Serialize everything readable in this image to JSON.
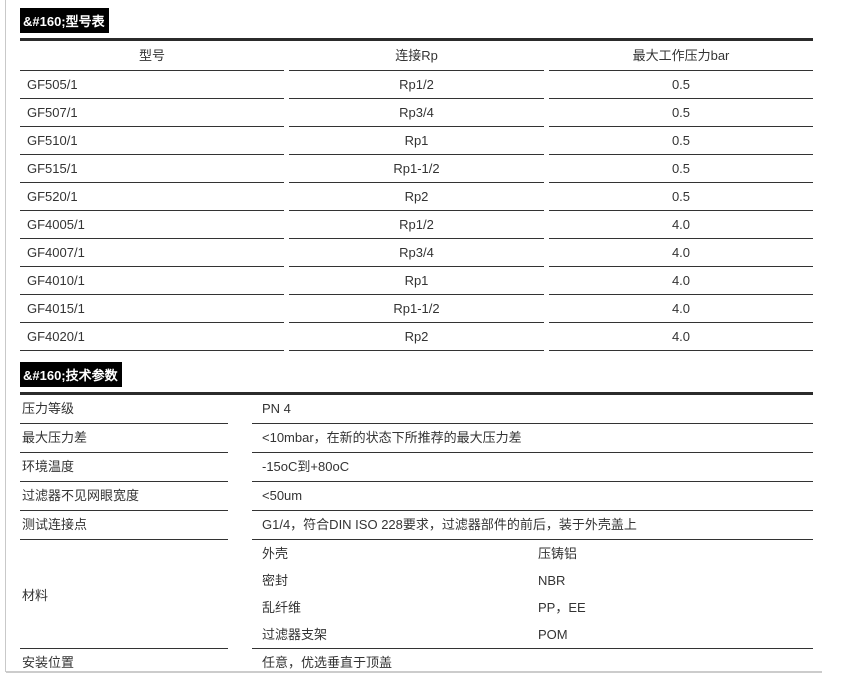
{
  "section1": {
    "title": "&#160;型号表",
    "table": {
      "headers": [
        "型号",
        "连接Rp",
        "最大工作压力bar"
      ],
      "rows": [
        [
          "GF505/1",
          "Rp1/2",
          "0.5"
        ],
        [
          "GF507/1",
          "Rp3/4",
          "0.5"
        ],
        [
          "GF510/1",
          "Rp1",
          "0.5"
        ],
        [
          "GF515/1",
          "Rp1-1/2",
          "0.5"
        ],
        [
          "GF520/1",
          "Rp2",
          "0.5"
        ],
        [
          "GF4005/1",
          "Rp1/2",
          "4.0"
        ],
        [
          "GF4007/1",
          "Rp3/4",
          "4.0"
        ],
        [
          "GF4010/1",
          "Rp1",
          "4.0"
        ],
        [
          "GF4015/1",
          "Rp1-1/2",
          "4.0"
        ],
        [
          "GF4020/1",
          "Rp2",
          "4.0"
        ]
      ]
    }
  },
  "section2": {
    "title": "&#160;技术参数",
    "rows": [
      {
        "label": "压力等级",
        "value": "PN 4"
      },
      {
        "label": "最大压力差",
        "value": "<10mbar，在新的状态下所推荐的最大压力差"
      },
      {
        "label": "环境温度",
        "value": "-15oC到+80oC"
      },
      {
        "label": "过滤器不见网眼宽度",
        "value": "<50um"
      },
      {
        "label": "测试连接点",
        "value": "G1/4，符合DIN ISO 228要求，过滤器部件的前后，装于外壳盖上"
      },
      {
        "label": "材料",
        "materials": [
          {
            "name": "外壳",
            "value": "压铸铝"
          },
          {
            "name": "密封",
            "value": "NBR"
          },
          {
            "name": "乱纤维",
            "value": "PP，EE"
          },
          {
            "name": "过滤器支架",
            "value": "POM"
          }
        ]
      },
      {
        "label": "安装位置",
        "value": "任意，优选垂直于顶盖"
      }
    ]
  },
  "colors": {
    "title_bg": "#000000",
    "title_text": "#ffffff",
    "thick_rule": "#2b2b2b",
    "row_border": "#333333",
    "text": "#333333",
    "page_frame": "#c9c9c9",
    "background": "#ffffff"
  }
}
